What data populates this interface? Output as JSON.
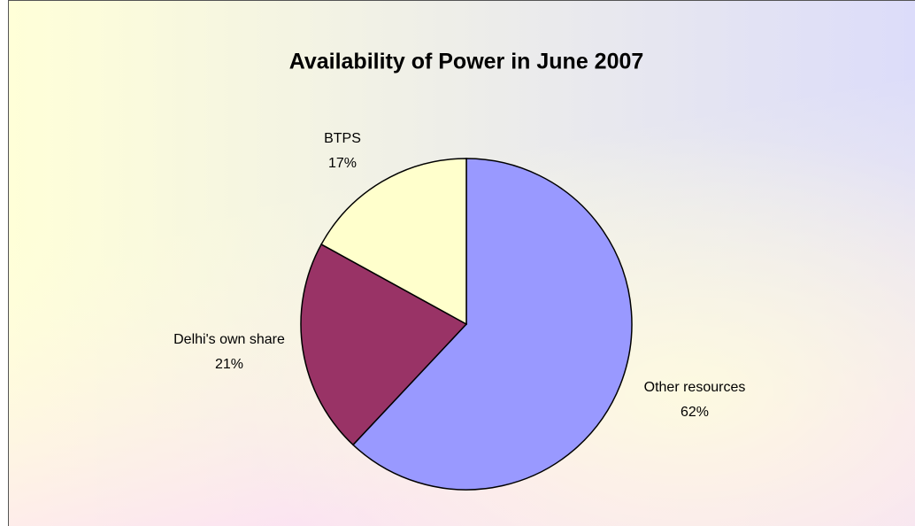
{
  "chart_data": {
    "type": "pie",
    "title": "Availability of Power in June 2007",
    "categories": [
      "Other resources",
      "Delhi's own share",
      "BTPS"
    ],
    "values": [
      62,
      21,
      17
    ],
    "value_labels": [
      "62%",
      "21%",
      "17%"
    ],
    "colors": [
      "#9999ff",
      "#993366",
      "#ffffcc"
    ]
  }
}
